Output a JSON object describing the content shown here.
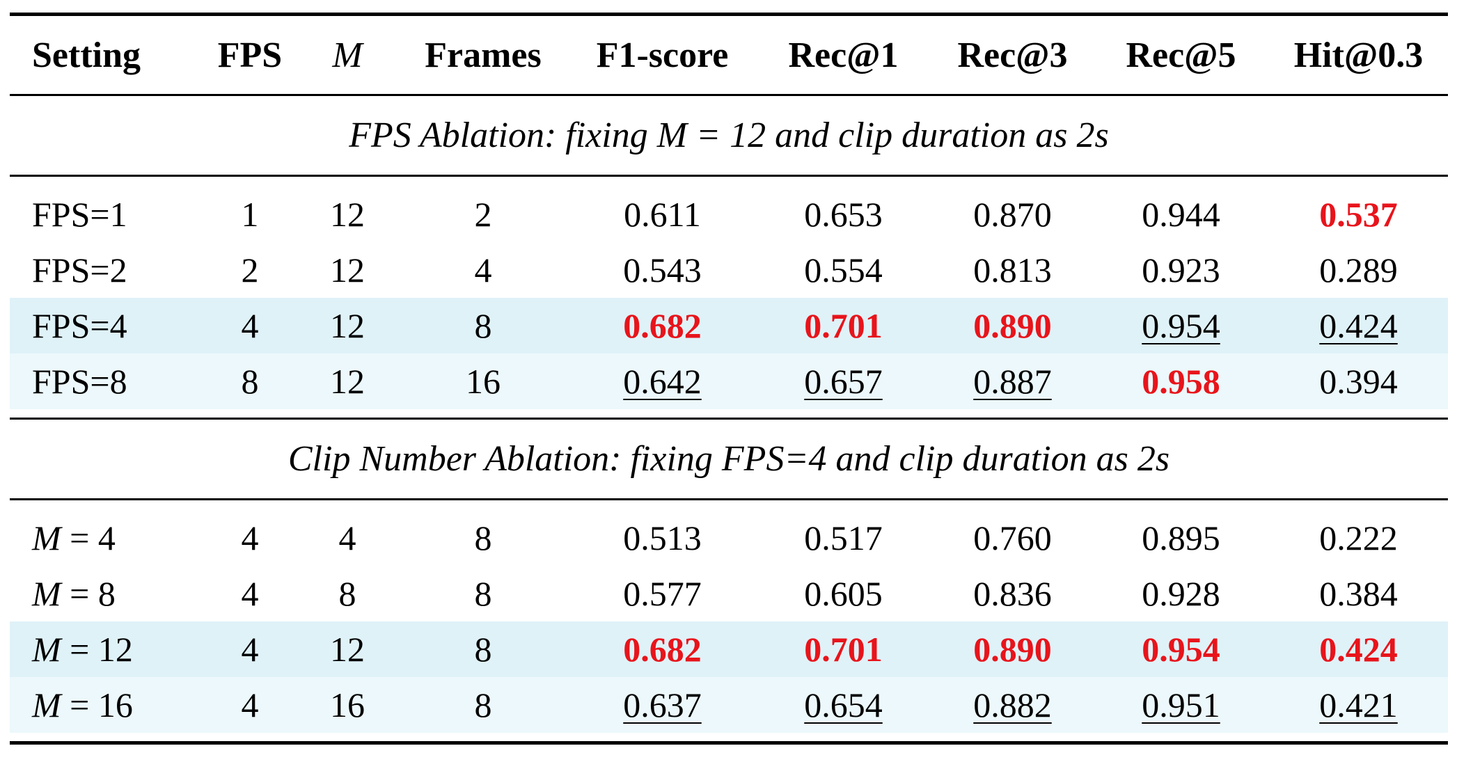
{
  "table": {
    "headers": [
      "Setting",
      "FPS",
      "M",
      "Frames",
      "F1-score",
      "Rec@1",
      "Rec@3",
      "Rec@5",
      "Hit@0.3"
    ],
    "sections": [
      {
        "title": "FPS Ablation: fixing M = 12 and clip duration as 2s",
        "rows": [
          {
            "setting": "FPS=1",
            "fps": "1",
            "m": "12",
            "frames": "2",
            "f1": "0.611",
            "rec1": "0.653",
            "rec3": "0.870",
            "rec5": "0.944",
            "hit": "0.537"
          },
          {
            "setting": "FPS=2",
            "fps": "2",
            "m": "12",
            "frames": "4",
            "f1": "0.543",
            "rec1": "0.554",
            "rec3": "0.813",
            "rec5": "0.923",
            "hit": "0.289"
          },
          {
            "setting": "FPS=4",
            "fps": "4",
            "m": "12",
            "frames": "8",
            "f1": "0.682",
            "rec1": "0.701",
            "rec3": "0.890",
            "rec5": "0.954",
            "hit": "0.424"
          },
          {
            "setting": "FPS=8",
            "fps": "8",
            "m": "12",
            "frames": "16",
            "f1": "0.642",
            "rec1": "0.657",
            "rec3": "0.887",
            "rec5": "0.958",
            "hit": "0.394"
          }
        ]
      },
      {
        "title": "Clip Number Ablation: fixing FPS=4 and clip duration as 2s",
        "rows": [
          {
            "setting_var": "M",
            "setting_val": "= 4",
            "fps": "4",
            "m": "4",
            "frames": "8",
            "f1": "0.513",
            "rec1": "0.517",
            "rec3": "0.760",
            "rec5": "0.895",
            "hit": "0.222"
          },
          {
            "setting_var": "M",
            "setting_val": "= 8",
            "fps": "4",
            "m": "8",
            "frames": "8",
            "f1": "0.577",
            "rec1": "0.605",
            "rec3": "0.836",
            "rec5": "0.928",
            "hit": "0.384"
          },
          {
            "setting_var": "M",
            "setting_val": "= 12",
            "fps": "4",
            "m": "12",
            "frames": "8",
            "f1": "0.682",
            "rec1": "0.701",
            "rec3": "0.890",
            "rec5": "0.954",
            "hit": "0.424"
          },
          {
            "setting_var": "M",
            "setting_val": "= 16",
            "fps": "4",
            "m": "16",
            "frames": "8",
            "f1": "0.637",
            "rec1": "0.654",
            "rec3": "0.882",
            "rec5": "0.951",
            "hit": "0.421"
          }
        ]
      }
    ]
  },
  "colors": {
    "best": "#e8141b",
    "highlight_row_a": "#dff2f8",
    "highlight_row_b": "#ecf8fb"
  }
}
